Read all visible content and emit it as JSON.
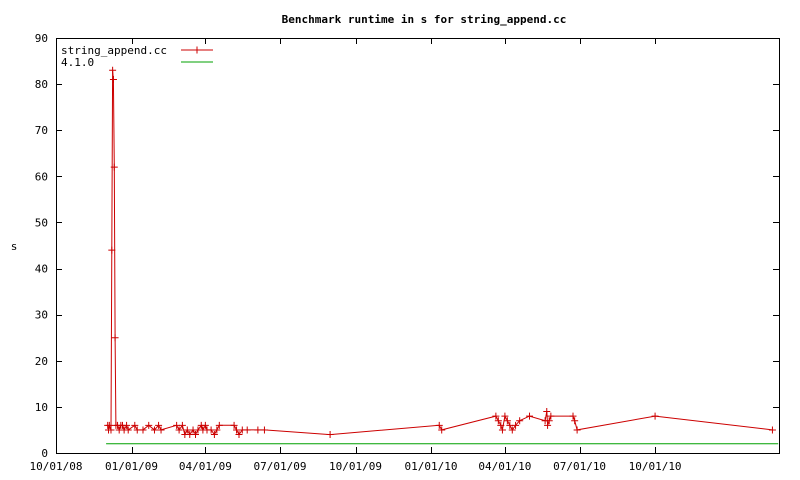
{
  "chart_data": {
    "type": "line",
    "title": "Benchmark runtime in s for string_append.cc",
    "xlabel": "",
    "ylabel": "s",
    "ylim": [
      0,
      90
    ],
    "yticks": [
      0,
      10,
      20,
      30,
      40,
      50,
      60,
      70,
      80,
      90
    ],
    "xlim": [
      "2008-10-01",
      "2011-03-01"
    ],
    "xticks": [
      {
        "date": "2008-10-01",
        "label": "10/01/08"
      },
      {
        "date": "2009-01-01",
        "label": "01/01/09"
      },
      {
        "date": "2009-04-01",
        "label": "04/01/09"
      },
      {
        "date": "2009-07-01",
        "label": "07/01/09"
      },
      {
        "date": "2009-10-01",
        "label": "10/01/09"
      },
      {
        "date": "2010-01-01",
        "label": "01/01/10"
      },
      {
        "date": "2010-04-01",
        "label": "04/01/10"
      },
      {
        "date": "2010-07-01",
        "label": "07/01/10"
      },
      {
        "date": "2010-10-01",
        "label": "10/01/10"
      }
    ],
    "grid": false,
    "legend_position": "top-left",
    "series": [
      {
        "name": "string_append.cc",
        "color": "#cc0000",
        "marker": "plus",
        "points": [
          [
            "2008-12-03",
            6
          ],
          [
            "2008-12-04",
            5
          ],
          [
            "2008-12-05",
            6
          ],
          [
            "2008-12-07",
            5
          ],
          [
            "2008-12-08",
            44
          ],
          [
            "2008-12-09",
            83
          ],
          [
            "2008-12-10",
            81
          ],
          [
            "2008-12-11",
            62
          ],
          [
            "2008-12-12",
            25
          ],
          [
            "2008-12-13",
            6
          ],
          [
            "2008-12-15",
            6
          ],
          [
            "2008-12-17",
            5
          ],
          [
            "2008-12-19",
            6
          ],
          [
            "2008-12-21",
            6
          ],
          [
            "2008-12-23",
            5
          ],
          [
            "2008-12-26",
            6
          ],
          [
            "2008-12-28",
            5
          ],
          [
            "2009-01-05",
            6
          ],
          [
            "2009-01-08",
            5
          ],
          [
            "2009-01-15",
            5
          ],
          [
            "2009-01-22",
            6
          ],
          [
            "2009-01-29",
            5
          ],
          [
            "2009-02-03",
            6
          ],
          [
            "2009-02-06",
            5
          ],
          [
            "2009-02-25",
            6
          ],
          [
            "2009-02-28",
            5
          ],
          [
            "2009-03-04",
            6
          ],
          [
            "2009-03-07",
            4
          ],
          [
            "2009-03-10",
            5
          ],
          [
            "2009-03-13",
            4
          ],
          [
            "2009-03-17",
            5
          ],
          [
            "2009-03-20",
            4
          ],
          [
            "2009-03-23",
            5
          ],
          [
            "2009-03-27",
            6
          ],
          [
            "2009-03-29",
            5
          ],
          [
            "2009-04-01",
            6
          ],
          [
            "2009-04-03",
            5
          ],
          [
            "2009-04-08",
            5
          ],
          [
            "2009-04-12",
            4
          ],
          [
            "2009-04-15",
            5
          ],
          [
            "2009-04-18",
            6
          ],
          [
            "2009-05-06",
            6
          ],
          [
            "2009-05-09",
            5
          ],
          [
            "2009-05-12",
            4
          ],
          [
            "2009-05-16",
            5
          ],
          [
            "2009-05-22",
            5
          ],
          [
            "2009-06-04",
            5
          ],
          [
            "2009-06-12",
            5
          ],
          [
            "2009-08-31",
            4
          ],
          [
            "2010-01-11",
            6
          ],
          [
            "2010-01-14",
            5
          ],
          [
            "2010-03-21",
            8
          ],
          [
            "2010-03-24",
            7
          ],
          [
            "2010-03-27",
            6
          ],
          [
            "2010-03-29",
            5
          ],
          [
            "2010-04-01",
            8
          ],
          [
            "2010-04-04",
            7
          ],
          [
            "2010-04-07",
            6
          ],
          [
            "2010-04-10",
            5
          ],
          [
            "2010-04-14",
            6
          ],
          [
            "2010-04-19",
            7
          ],
          [
            "2010-05-01",
            8
          ],
          [
            "2010-05-20",
            7
          ],
          [
            "2010-05-22",
            9
          ],
          [
            "2010-05-23",
            6
          ],
          [
            "2010-05-25",
            7
          ],
          [
            "2010-05-27",
            8
          ],
          [
            "2010-06-23",
            8
          ],
          [
            "2010-06-25",
            7
          ],
          [
            "2010-06-28",
            5
          ],
          [
            "2010-10-01",
            8
          ],
          [
            "2011-02-21",
            5
          ]
        ]
      },
      {
        "name": "4.1.0",
        "color": "#00a000",
        "marker": "none",
        "points": [
          [
            "2008-12-01",
            2
          ],
          [
            "2011-02-28",
            2
          ]
        ]
      }
    ]
  }
}
